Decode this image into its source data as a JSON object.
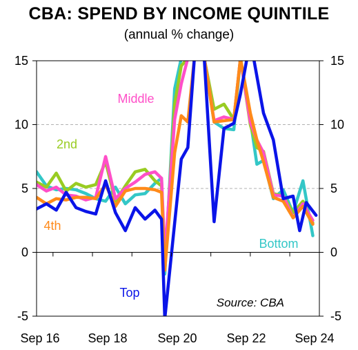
{
  "chart_data": {
    "type": "line",
    "title": "CBA: SPEND BY INCOME QUINTILE",
    "subtitle": "(annual % change)",
    "source": "Source: CBA",
    "x_tick_labels": [
      "Sep 16",
      "Sep 18",
      "Sep 20",
      "Sep 22",
      "Sep 24"
    ],
    "x_range": [
      "Apr 2016",
      "Sep 2024"
    ],
    "ylim": [
      -5,
      15
    ],
    "y_ticks": [
      -5,
      0,
      5,
      10,
      15
    ],
    "grid": "dashed horizontal",
    "series": [
      {
        "name": "Bottom",
        "color": "#33c7c7",
        "values": [
          [
            0,
            6.3
          ],
          [
            3,
            5.2
          ],
          [
            6,
            4.9
          ],
          [
            9,
            5.0
          ],
          [
            12,
            4.9
          ],
          [
            15,
            4.6
          ],
          [
            18,
            4.2
          ],
          [
            21,
            4.0
          ],
          [
            24,
            5.1
          ],
          [
            27,
            3.8
          ],
          [
            30,
            4.5
          ],
          [
            33,
            4.6
          ],
          [
            36,
            5.4
          ],
          [
            38,
            5.8
          ],
          [
            39,
            -1.7
          ],
          [
            42,
            12.8
          ],
          [
            44,
            15.2
          ],
          [
            46,
            15.2
          ],
          [
            48,
            15.2
          ],
          [
            51,
            15.2
          ],
          [
            54,
            10.2
          ],
          [
            57,
            9.7
          ],
          [
            60,
            9.6
          ],
          [
            62,
            15.2
          ],
          [
            65,
            10.4
          ],
          [
            67,
            6.9
          ],
          [
            69,
            7.2
          ],
          [
            72,
            4.2
          ],
          [
            75,
            4.9
          ],
          [
            78,
            3.1
          ],
          [
            81,
            5.6
          ],
          [
            84,
            1.3
          ]
        ]
      },
      {
        "name": "2nd",
        "color": "#99cc22",
        "values": [
          [
            0,
            5.5
          ],
          [
            3,
            5.1
          ],
          [
            6,
            6.2
          ],
          [
            9,
            4.8
          ],
          [
            12,
            5.4
          ],
          [
            15,
            5.1
          ],
          [
            18,
            5.3
          ],
          [
            21,
            7.1
          ],
          [
            24,
            4.0
          ],
          [
            27,
            5.2
          ],
          [
            30,
            6.3
          ],
          [
            33,
            6.5
          ],
          [
            36,
            5.6
          ],
          [
            38,
            5.2
          ],
          [
            39,
            -1.2
          ],
          [
            42,
            11.6
          ],
          [
            44,
            14.6
          ],
          [
            46,
            15.2
          ],
          [
            48,
            15.2
          ],
          [
            51,
            15.2
          ],
          [
            54,
            11.2
          ],
          [
            57,
            11.6
          ],
          [
            60,
            10.4
          ],
          [
            62,
            15.2
          ],
          [
            65,
            10.0
          ],
          [
            67,
            8.2
          ],
          [
            69,
            7.9
          ],
          [
            72,
            4.6
          ],
          [
            75,
            4.4
          ],
          [
            78,
            3.1
          ],
          [
            81,
            4.0
          ],
          [
            84,
            2.3
          ]
        ]
      },
      {
        "name": "Middle",
        "color": "#ff4fc8",
        "values": [
          [
            0,
            5.3
          ],
          [
            3,
            4.8
          ],
          [
            6,
            5.1
          ],
          [
            9,
            4.5
          ],
          [
            12,
            4.4
          ],
          [
            15,
            4.1
          ],
          [
            18,
            4.3
          ],
          [
            21,
            7.5
          ],
          [
            24,
            4.2
          ],
          [
            27,
            5.0
          ],
          [
            30,
            5.5
          ],
          [
            33,
            6.1
          ],
          [
            36,
            6.3
          ],
          [
            38,
            5.8
          ],
          [
            39,
            -0.3
          ],
          [
            42,
            10.4
          ],
          [
            44,
            13.2
          ],
          [
            46,
            15.2
          ],
          [
            48,
            15.2
          ],
          [
            51,
            15.2
          ],
          [
            54,
            10.3
          ],
          [
            57,
            10.6
          ],
          [
            60,
            10.4
          ],
          [
            62,
            15.2
          ],
          [
            65,
            10.2
          ],
          [
            67,
            8.8
          ],
          [
            69,
            7.8
          ],
          [
            72,
            4.5
          ],
          [
            75,
            4.4
          ],
          [
            78,
            2.7
          ],
          [
            81,
            3.8
          ],
          [
            84,
            2.5
          ]
        ]
      },
      {
        "name": "4th",
        "color": "#ff8a1a",
        "values": [
          [
            0,
            4.3
          ],
          [
            3,
            3.8
          ],
          [
            6,
            4.2
          ],
          [
            9,
            4.1
          ],
          [
            12,
            4.3
          ],
          [
            15,
            4.3
          ],
          [
            18,
            4.2
          ],
          [
            21,
            5.3
          ],
          [
            24,
            3.6
          ],
          [
            27,
            4.8
          ],
          [
            30,
            5.0
          ],
          [
            33,
            5.0
          ],
          [
            36,
            4.9
          ],
          [
            38,
            4.7
          ],
          [
            39,
            -1.4
          ],
          [
            42,
            7.8
          ],
          [
            44,
            10.7
          ],
          [
            46,
            10.2
          ],
          [
            48,
            15.2
          ],
          [
            51,
            15.2
          ],
          [
            54,
            10.2
          ],
          [
            57,
            10.3
          ],
          [
            60,
            10.4
          ],
          [
            62,
            15.2
          ],
          [
            65,
            10.9
          ],
          [
            67,
            8.8
          ],
          [
            69,
            7.1
          ],
          [
            72,
            4.3
          ],
          [
            75,
            4.0
          ],
          [
            78,
            2.7
          ],
          [
            81,
            3.6
          ],
          [
            84,
            2.2
          ]
        ]
      },
      {
        "name": "Top",
        "color": "#0a14e8",
        "values": [
          [
            0,
            3.4
          ],
          [
            3,
            3.8
          ],
          [
            6,
            3.3
          ],
          [
            9,
            4.7
          ],
          [
            12,
            3.5
          ],
          [
            15,
            3.2
          ],
          [
            18,
            3.0
          ],
          [
            21,
            5.6
          ],
          [
            24,
            3.1
          ],
          [
            27,
            1.7
          ],
          [
            30,
            3.5
          ],
          [
            33,
            2.6
          ],
          [
            36,
            3.3
          ],
          [
            38,
            2.6
          ],
          [
            39,
            -5.2
          ],
          [
            42,
            2.3
          ],
          [
            44,
            7.3
          ],
          [
            46,
            8.2
          ],
          [
            48,
            15.2
          ],
          [
            51,
            15.2
          ],
          [
            54,
            2.4
          ],
          [
            57,
            9.7
          ],
          [
            60,
            10.1
          ],
          [
            62,
            12.4
          ],
          [
            64,
            15.2
          ],
          [
            66,
            15.2
          ],
          [
            69,
            10.9
          ],
          [
            72,
            8.8
          ],
          [
            75,
            4.2
          ],
          [
            78,
            4.4
          ],
          [
            80,
            1.7
          ],
          [
            82,
            3.9
          ],
          [
            85,
            2.9
          ]
        ]
      }
    ],
    "series_labels": [
      "Middle",
      "2nd",
      "4th",
      "Bottom",
      "Top"
    ]
  }
}
